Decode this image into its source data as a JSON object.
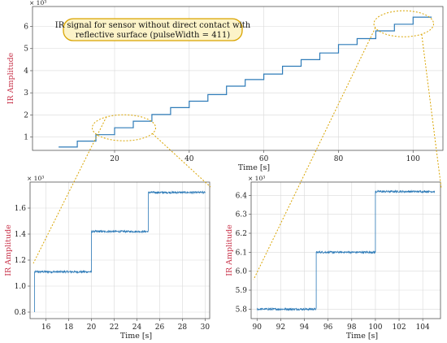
{
  "chart_data": [
    {
      "id": "main",
      "type": "line",
      "title": "",
      "annotation": [
        "IR signal for sensor without direct contact with",
        "reflective surface (pulseWidth = 411)"
      ],
      "xlabel": "Time [s]",
      "ylabel": "IR Amplitude",
      "exponent": "× 10³",
      "xlim": [
        -2,
        108
      ],
      "ylim": [
        0.4,
        6.9
      ],
      "xticks": [
        20,
        40,
        60,
        80,
        100
      ],
      "yticks": [
        1,
        2,
        3,
        4,
        5,
        6
      ],
      "grid": true,
      "color": "#2e7bb8",
      "steps": [
        [
          5,
          0.55
        ],
        [
          10,
          0.82
        ],
        [
          15,
          1.11
        ],
        [
          20,
          1.42
        ],
        [
          25,
          1.72
        ],
        [
          30,
          2.02
        ],
        [
          35,
          2.33
        ],
        [
          40,
          2.62
        ],
        [
          45,
          2.92
        ],
        [
          50,
          3.3
        ],
        [
          55,
          3.6
        ],
        [
          60,
          3.85
        ],
        [
          65,
          4.2
        ],
        [
          70,
          4.5
        ],
        [
          75,
          4.8
        ],
        [
          80,
          5.18
        ],
        [
          85,
          5.45
        ],
        [
          90,
          5.8
        ],
        [
          95,
          6.1
        ],
        [
          100,
          6.42
        ],
        [
          105,
          6.42
        ]
      ]
    },
    {
      "id": "inset-left",
      "type": "line",
      "xlabel": "Time [s]",
      "ylabel": "IR Amplitude",
      "exponent": "× 10³",
      "xlim": [
        14.6,
        30.4
      ],
      "ylim": [
        0.75,
        1.8
      ],
      "xticks": [
        16,
        18,
        20,
        22,
        24,
        26,
        28,
        30
      ],
      "yticks": [
        0.8,
        1.0,
        1.2,
        1.4,
        1.6
      ],
      "grid": true,
      "color": "#2e7bb8",
      "steps": [
        [
          15,
          1.11
        ],
        [
          20,
          1.42
        ],
        [
          25,
          1.72
        ],
        [
          30,
          1.72
        ]
      ],
      "start_spike": [
        0.8,
        1.11
      ]
    },
    {
      "id": "inset-right",
      "type": "line",
      "xlabel": "Time [s]",
      "ylabel": "IR Amplitude",
      "exponent": "× 10³",
      "xlim": [
        89.5,
        105.5
      ],
      "ylim": [
        5.75,
        6.47
      ],
      "xticks": [
        90,
        92,
        94,
        96,
        98,
        100,
        102,
        104
      ],
      "yticks": [
        5.8,
        5.9,
        6.0,
        6.1,
        6.2,
        6.3,
        6.4
      ],
      "grid": true,
      "color": "#2e7bb8",
      "steps": [
        [
          90,
          5.8
        ],
        [
          95,
          6.1
        ],
        [
          100,
          6.42
        ],
        [
          105,
          6.42
        ]
      ]
    }
  ]
}
